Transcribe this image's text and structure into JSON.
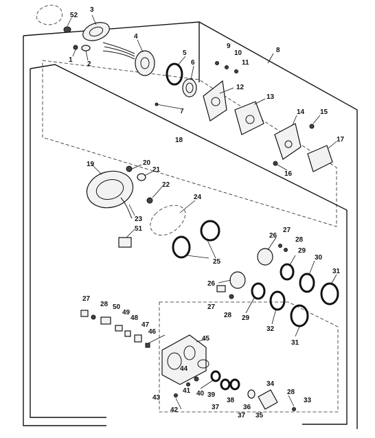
{
  "callouts": [
    {
      "id": "c52",
      "label": "52"
    },
    {
      "id": "c3",
      "label": "3"
    },
    {
      "id": "c1",
      "label": "1"
    },
    {
      "id": "c2",
      "label": "2"
    },
    {
      "id": "c4",
      "label": "4"
    },
    {
      "id": "c5",
      "label": "5"
    },
    {
      "id": "c6",
      "label": "6"
    },
    {
      "id": "c7",
      "label": "7"
    },
    {
      "id": "c8",
      "label": "8"
    },
    {
      "id": "c9",
      "label": "9"
    },
    {
      "id": "c10",
      "label": "10"
    },
    {
      "id": "c11",
      "label": "11"
    },
    {
      "id": "c12",
      "label": "12"
    },
    {
      "id": "c13",
      "label": "13"
    },
    {
      "id": "c14",
      "label": "14"
    },
    {
      "id": "c15",
      "label": "15"
    },
    {
      "id": "c16",
      "label": "16"
    },
    {
      "id": "c17",
      "label": "17"
    },
    {
      "id": "c18",
      "label": "18"
    },
    {
      "id": "c19",
      "label": "19"
    },
    {
      "id": "c20",
      "label": "20"
    },
    {
      "id": "c21",
      "label": "21"
    },
    {
      "id": "c22",
      "label": "22"
    },
    {
      "id": "c23",
      "label": "23"
    },
    {
      "id": "c24",
      "label": "24"
    },
    {
      "id": "c51",
      "label": "51"
    },
    {
      "id": "c25",
      "label": "25"
    },
    {
      "id": "c26a",
      "label": "26"
    },
    {
      "id": "c27a",
      "label": "27"
    },
    {
      "id": "c28a",
      "label": "28"
    },
    {
      "id": "c29a",
      "label": "29"
    },
    {
      "id": "c30",
      "label": "30"
    },
    {
      "id": "c31a",
      "label": "31"
    },
    {
      "id": "c26b",
      "label": "26"
    },
    {
      "id": "c27b",
      "label": "27"
    },
    {
      "id": "c28b",
      "label": "28"
    },
    {
      "id": "c29b",
      "label": "29"
    },
    {
      "id": "c32",
      "label": "32"
    },
    {
      "id": "c31b",
      "label": "31"
    },
    {
      "id": "c27c",
      "label": "27"
    },
    {
      "id": "c28c",
      "label": "28"
    },
    {
      "id": "c50",
      "label": "50"
    },
    {
      "id": "c49",
      "label": "49"
    },
    {
      "id": "c48",
      "label": "48"
    },
    {
      "id": "c47",
      "label": "47"
    },
    {
      "id": "c46",
      "label": "46"
    },
    {
      "id": "c45",
      "label": "45"
    },
    {
      "id": "c44",
      "label": "44"
    },
    {
      "id": "c41",
      "label": "41"
    },
    {
      "id": "c40",
      "label": "40"
    },
    {
      "id": "c39",
      "label": "39"
    },
    {
      "id": "c43",
      "label": "43"
    },
    {
      "id": "c42",
      "label": "42"
    },
    {
      "id": "c37a",
      "label": "37"
    },
    {
      "id": "c38",
      "label": "38"
    },
    {
      "id": "c36",
      "label": "36"
    },
    {
      "id": "c37b",
      "label": "37"
    },
    {
      "id": "c35",
      "label": "35"
    },
    {
      "id": "c34",
      "label": "34"
    },
    {
      "id": "c28d",
      "label": "28"
    },
    {
      "id": "c33",
      "label": "33"
    }
  ]
}
